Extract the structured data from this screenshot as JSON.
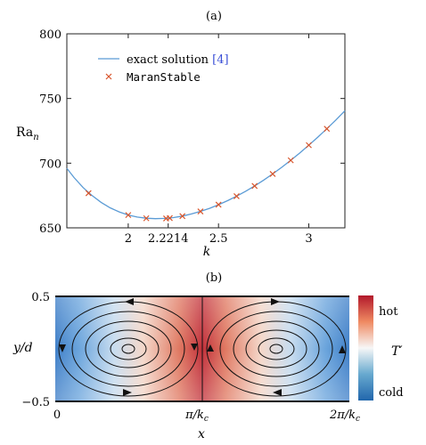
{
  "panel_a": {
    "label": "(a)",
    "ylabel_main": "Ra",
    "ylabel_sub": "n",
    "xlabel": "k"
  },
  "panel_b": {
    "label": "(b)",
    "ylabel": "y/d",
    "xlabel": "x",
    "ytick_top": "0.5",
    "ytick_bottom": "−0.5",
    "xtick_left": "0",
    "xtick_mid": "π/k",
    "xtick_right": "2π/k",
    "xtick_sub": "c",
    "colorbar_top": "hot",
    "colorbar_bottom": "cold",
    "colorbar_label": "T′",
    "colors": {
      "hot": "#b2182b",
      "neutral": "#f7f7f7",
      "cold": "#2166ac"
    }
  },
  "chart_data": [
    {
      "type": "line",
      "title": "(a)",
      "xlabel": "k",
      "ylabel": "Ra_n",
      "xlim": [
        1.66,
        3.2
      ],
      "ylim": [
        650,
        800
      ],
      "xticks": [
        {
          "value": 2,
          "label": "2"
        },
        {
          "value": 2.2214,
          "label": "2.2214"
        },
        {
          "value": 2.5,
          "label": "2.5"
        },
        {
          "value": 3,
          "label": "3"
        }
      ],
      "yticks": [
        650,
        700,
        750,
        800
      ],
      "legend": {
        "placement": "top-left",
        "entries": [
          {
            "label": "exact solution ",
            "ref": "[4]",
            "style": "line",
            "color": "#5b9bd5"
          },
          {
            "label": "MaranStable",
            "style": "marker-x",
            "color": "#d9552b"
          }
        ]
      },
      "series": [
        {
          "name": "exact solution [4]",
          "style": "line",
          "color": "#5b9bd5",
          "x": [
            1.66,
            1.7,
            1.75,
            1.8,
            1.85,
            1.9,
            1.95,
            2.0,
            2.05,
            2.1,
            2.15,
            2.2,
            2.2214,
            2.25,
            2.3,
            2.35,
            2.4,
            2.45,
            2.5,
            2.55,
            2.6,
            2.65,
            2.7,
            2.75,
            2.8,
            2.85,
            2.9,
            2.95,
            3.0,
            3.05,
            3.1,
            3.15,
            3.2
          ],
          "y": [
            696.0,
            688.9,
            681.2,
            674.9,
            669.7,
            665.5,
            662.3,
            659.9,
            658.3,
            657.4,
            657.1,
            657.3,
            657.5,
            657.9,
            659.1,
            660.7,
            662.7,
            665.1,
            667.9,
            671.0,
            674.5,
            678.3,
            682.4,
            686.9,
            691.7,
            696.8,
            702.2,
            707.9,
            713.9,
            720.1,
            726.6,
            733.4,
            740.5
          ]
        },
        {
          "name": "MaranStable",
          "style": "marker-x",
          "color": "#d9552b",
          "x": [
            1.78,
            2.0,
            2.1,
            2.21,
            2.23,
            2.3,
            2.4,
            2.5,
            2.6,
            2.7,
            2.8,
            2.9,
            3.0,
            3.1
          ],
          "y": [
            676.8,
            659.9,
            657.4,
            657.3,
            657.5,
            659.1,
            662.7,
            667.9,
            674.5,
            682.4,
            691.7,
            702.2,
            713.9,
            726.6
          ]
        }
      ]
    }
  ]
}
